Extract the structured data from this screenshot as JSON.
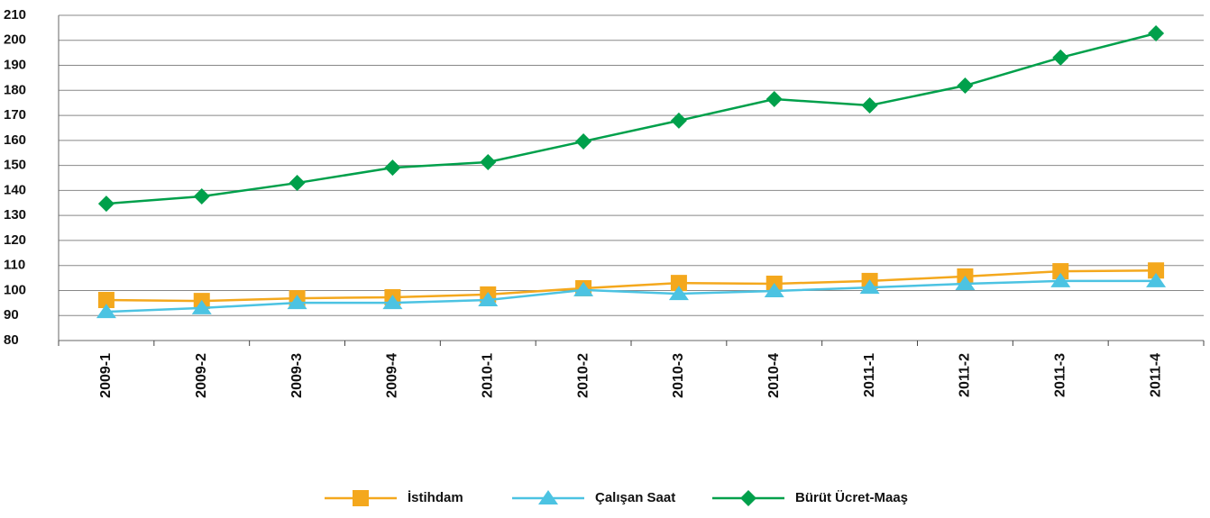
{
  "chart_data": {
    "type": "line",
    "categories": [
      "2009-1",
      "2009-2",
      "2009-3",
      "2009-4",
      "2010-1",
      "2010-2",
      "2010-3",
      "2010-4",
      "2011-1",
      "2011-2",
      "2011-3",
      "2011-4"
    ],
    "series": [
      {
        "name": "İstihdam",
        "color": "#f4a81d",
        "marker": "square",
        "values": [
          96.2,
          95.8,
          96.9,
          97.3,
          98.4,
          100.9,
          103,
          102.7,
          103.8,
          105.6,
          107.7,
          108
        ]
      },
      {
        "name": "Çalışan Saat",
        "color": "#4cc3e2",
        "marker": "triangle",
        "values": [
          91.5,
          93,
          95.1,
          95.1,
          96.2,
          100.2,
          98.7,
          99.8,
          101.2,
          102.7,
          103.8,
          103.8
        ]
      },
      {
        "name": "Bürüt Ücret-Maaş",
        "color": "#00a04b",
        "marker": "diamond",
        "values": [
          134.7,
          137.6,
          143,
          149.1,
          151.3,
          159.6,
          167.9,
          176.5,
          174,
          181.9,
          193.1,
          202.8
        ]
      }
    ],
    "ylim": [
      80,
      210
    ],
    "yticks": [
      80,
      90,
      100,
      110,
      120,
      130,
      140,
      150,
      160,
      170,
      180,
      190,
      200,
      210
    ],
    "grid": true,
    "legend": "bottom"
  }
}
